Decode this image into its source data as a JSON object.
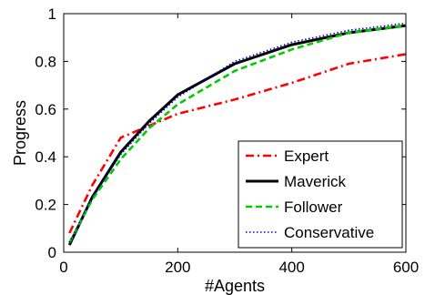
{
  "chart_data": {
    "type": "line",
    "title": "",
    "xlabel": "#Agents",
    "ylabel": "Progress",
    "xlim": [
      0,
      600
    ],
    "ylim": [
      0,
      1
    ],
    "xticks": [
      0,
      200,
      400,
      600
    ],
    "yticks": [
      0,
      0.2,
      0.4,
      0.6,
      0.8,
      1
    ],
    "xtick_labels": [
      "0",
      "200",
      "400",
      "600"
    ],
    "ytick_labels": [
      "0",
      "0.2",
      "0.4",
      "0.6",
      "0.8",
      "1"
    ],
    "grid": false,
    "legend_position": "bottom-right",
    "series": [
      {
        "name": "Expert",
        "color": "#ff0000",
        "style": "dash-dot",
        "x": [
          10,
          50,
          100,
          150,
          200,
          300,
          400,
          500,
          600
        ],
        "y": [
          0.08,
          0.28,
          0.48,
          0.53,
          0.58,
          0.64,
          0.71,
          0.79,
          0.83
        ]
      },
      {
        "name": "Maverick",
        "color": "#000000",
        "style": "solid",
        "x": [
          10,
          50,
          100,
          150,
          200,
          300,
          400,
          500,
          600
        ],
        "y": [
          0.03,
          0.23,
          0.42,
          0.55,
          0.66,
          0.79,
          0.87,
          0.92,
          0.95
        ]
      },
      {
        "name": "Follower",
        "color": "#00cc00",
        "style": "dashed",
        "x": [
          10,
          50,
          100,
          150,
          200,
          300,
          400,
          500,
          600
        ],
        "y": [
          0.04,
          0.22,
          0.39,
          0.52,
          0.62,
          0.76,
          0.85,
          0.92,
          0.95
        ]
      },
      {
        "name": "Conservative",
        "color": "#0000cc",
        "style": "dotted",
        "x": [
          10,
          50,
          100,
          150,
          200,
          300,
          400,
          500,
          600
        ],
        "y": [
          0.04,
          0.23,
          0.41,
          0.54,
          0.65,
          0.8,
          0.88,
          0.93,
          0.96
        ]
      }
    ]
  }
}
